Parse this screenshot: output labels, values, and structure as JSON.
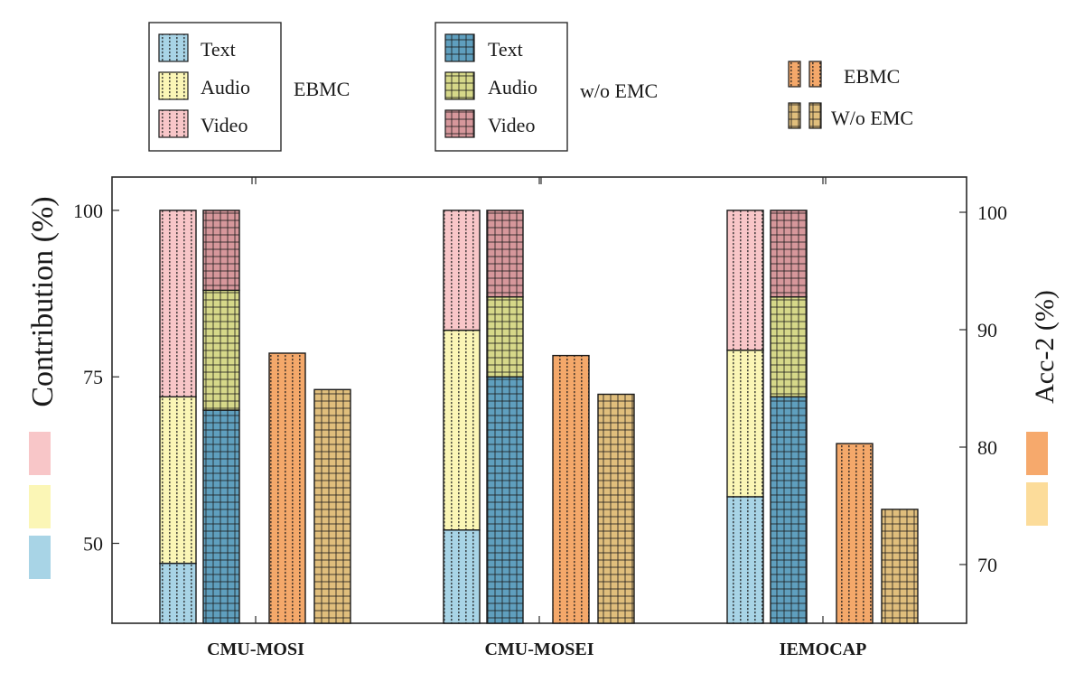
{
  "chart_data": {
    "type": "bar",
    "categories": [
      "CMU-MOSI",
      "CMU-MOSEI",
      "IEMOCAP"
    ],
    "left_axis": {
      "label": "Contribution (%)",
      "range": [
        38,
        105
      ],
      "ticks": [
        50,
        75,
        100
      ]
    },
    "right_axis": {
      "label": "Acc-2 (%)",
      "range": [
        65,
        103
      ],
      "ticks": [
        70,
        80,
        90,
        100
      ]
    },
    "stacked_groups": [
      {
        "name": "EBMC",
        "bar_tops": {
          "Text": [
            47,
            52,
            57
          ],
          "Audio": [
            72,
            82,
            79
          ],
          "Video": [
            100,
            100,
            100
          ]
        }
      },
      {
        "name": "w/o EMC",
        "bar_tops": {
          "Text": [
            70,
            75,
            72
          ],
          "Audio": [
            88,
            87,
            87
          ],
          "Video": [
            100,
            100,
            100
          ]
        }
      }
    ],
    "accuracy_series": [
      {
        "name": "EBMC",
        "values": [
          88.0,
          87.8,
          80.3
        ]
      },
      {
        "name": "W/o EMC",
        "values": [
          84.9,
          84.5,
          74.7
        ]
      }
    ],
    "legends": {
      "ebmc_box": {
        "items": [
          "Text",
          "Audio",
          "Video"
        ],
        "label": "EBMC"
      },
      "woemc_box": {
        "items": [
          "Text",
          "Audio",
          "Video"
        ],
        "label": "w/o EMC"
      },
      "acc_box": {
        "items": [
          "EBMC",
          "W/o EMC"
        ]
      }
    },
    "colors": {
      "text_light": "#a8d4e6",
      "audio_light": "#fbf6b6",
      "video_light": "#f8c6c8",
      "text_dark": "#5f9fbe",
      "audio_dark": "#d6d889",
      "video_dark": "#d6979b",
      "acc_ebmc": "#f4a86a",
      "acc_woemc": "#e0be7c",
      "side_acc_top": "#f6a96c",
      "side_acc_bottom": "#fcdc9a"
    },
    "grid": false
  }
}
